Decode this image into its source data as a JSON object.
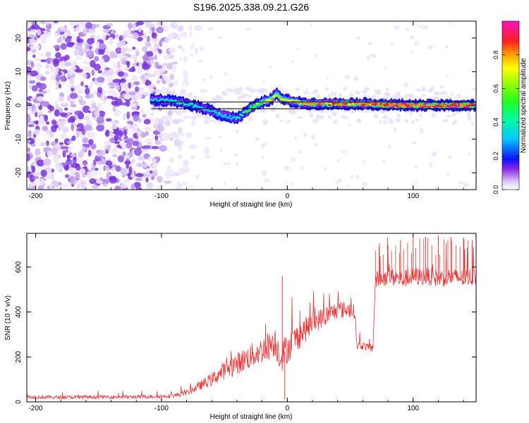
{
  "title": "S196.2025.338.09.21.G26",
  "chart_data": [
    {
      "type": "heatmap",
      "xlabel": "Height of straight line (km)",
      "ylabel": "Frequency (Hz)",
      "xlim": [
        -207,
        150
      ],
      "ylim": [
        -25,
        25
      ],
      "xticks": [
        -200,
        -100,
        0,
        100
      ],
      "xtick_labels": [
        "-200",
        "-100",
        "0",
        "100"
      ],
      "yticks": [
        -20,
        -10,
        0,
        10,
        20
      ],
      "ytick_labels": [
        "-20",
        "-10",
        "0",
        "10",
        "20"
      ],
      "reference_lines_hz": [
        -1,
        1
      ],
      "signal_track": {
        "description": "narrow high-amplitude frequency ridge",
        "x": [
          -108,
          -100,
          -90,
          -80,
          -70,
          -60,
          -55,
          -50,
          -45,
          -40,
          -35,
          -30,
          -25,
          -20,
          -15,
          -12,
          -10,
          -8,
          -5,
          0,
          10,
          20,
          40,
          60,
          80,
          100,
          120,
          150
        ],
        "y": [
          1.5,
          1.5,
          1.2,
          0.5,
          -0.5,
          -1.5,
          -2.5,
          -3.0,
          -3.5,
          -3.8,
          -2.5,
          -1.0,
          0.0,
          1.0,
          1.5,
          2.0,
          3.0,
          3.5,
          2.0,
          1.5,
          0.8,
          0.5,
          0.5,
          0.5,
          0.2,
          0.0,
          0.0,
          0.0
        ],
        "amplitude": [
          0.35,
          0.4,
          0.45,
          0.45,
          0.4,
          0.35,
          0.4,
          0.35,
          0.35,
          0.45,
          0.5,
          0.55,
          0.6,
          0.65,
          0.75,
          0.8,
          0.7,
          0.6,
          0.65,
          0.7,
          0.75,
          0.8,
          0.85,
          0.85,
          0.9,
          0.95,
          0.95,
          0.95
        ]
      },
      "noise_region_km": [
        -207,
        -80
      ],
      "colorbar": {
        "label": "Normalized spectral amplitude",
        "range": [
          0.0,
          1.0
        ],
        "ticks": [
          0.0,
          0.2,
          0.4,
          0.6,
          0.8
        ],
        "tick_labels": [
          "0.0",
          "0.2",
          "0.4",
          "0.6",
          "0.8"
        ]
      }
    },
    {
      "type": "line",
      "xlabel": "Height of straight line (km)",
      "ylabel": "SNR (10 * v/v)",
      "xlim": [
        -207,
        150
      ],
      "ylim": [
        0,
        750
      ],
      "xticks": [
        -200,
        -100,
        0,
        100
      ],
      "xtick_labels": [
        "-200",
        "-100",
        "0",
        "100"
      ],
      "yticks": [
        0,
        200,
        400,
        600
      ],
      "ytick_labels": [
        "0",
        "200",
        "400",
        "600"
      ],
      "color": "#e8383a",
      "series_envelope": {
        "x": [
          -207,
          -180,
          -150,
          -120,
          -100,
          -90,
          -80,
          -70,
          -60,
          -50,
          -40,
          -30,
          -20,
          -10,
          -5,
          0,
          10,
          20,
          30,
          40,
          50,
          54,
          55,
          60,
          65,
          68,
          70,
          80,
          90,
          100,
          110,
          120,
          130,
          140,
          150
        ],
        "y": [
          22,
          20,
          22,
          22,
          25,
          28,
          40,
          70,
          100,
          140,
          170,
          200,
          230,
          270,
          200,
          240,
          300,
          350,
          380,
          410,
          410,
          400,
          250,
          250,
          240,
          240,
          540,
          560,
          545,
          555,
          560,
          550,
          555,
          550,
          560
        ],
        "amp": [
          8,
          8,
          8,
          8,
          8,
          10,
          12,
          20,
          30,
          40,
          50,
          55,
          60,
          70,
          70,
          70,
          60,
          50,
          45,
          40,
          35,
          30,
          20,
          18,
          18,
          20,
          40,
          40,
          40,
          40,
          40,
          40,
          40,
          40,
          40
        ]
      },
      "spikes": [
        {
          "x": -4,
          "y": 560
        },
        {
          "x": -2,
          "y": 10
        },
        {
          "x": 73,
          "y": 690
        },
        {
          "x": 80,
          "y": 700
        },
        {
          "x": 90,
          "y": 720
        },
        {
          "x": 100,
          "y": 730
        },
        {
          "x": 110,
          "y": 735
        },
        {
          "x": 120,
          "y": 740
        },
        {
          "x": 130,
          "y": 735
        },
        {
          "x": 140,
          "y": 730
        },
        {
          "x": 147,
          "y": 720
        }
      ]
    }
  ]
}
